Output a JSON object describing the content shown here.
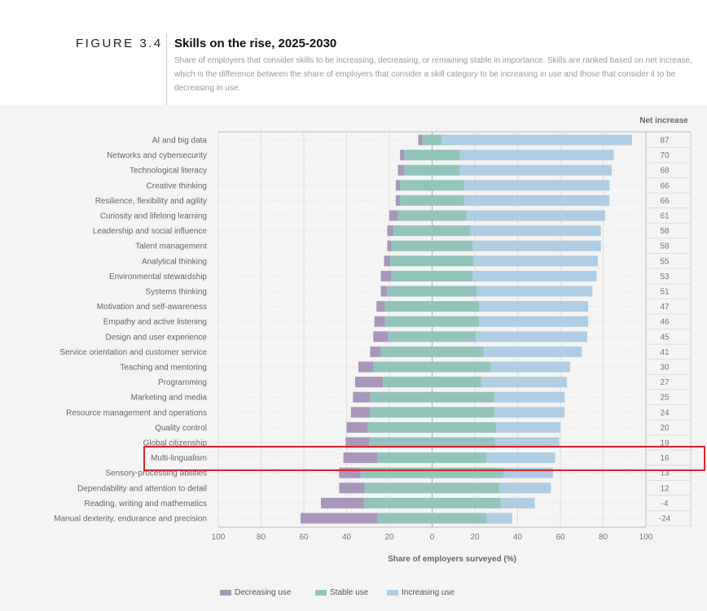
{
  "figure_label": "FIGURE 3.4",
  "net_header": "Net increase",
  "colors": {
    "decreasing": "#a897bb",
    "stable": "#93c4bc",
    "increasing": "#b0cde3",
    "highlight": "#e0242a"
  },
  "chart_data": {
    "type": "bar",
    "orientation": "horizontal-diverging-stacked",
    "title": "Skills on the rise, 2025-2030",
    "subtitle": "Share of employers that consider skills to be increasing, decreasing, or remaining stable in importance. Skills are ranked based on net increase, which is the difference between the share of employers that consider a skill category to be increasing in use and those that consider it to be decreasing in use.",
    "xlabel": "Share of employers surveyed (%)",
    "xlim": [
      -100,
      100
    ],
    "xticks": [
      "100",
      "80",
      "60",
      "40",
      "20",
      "0",
      "20",
      "40",
      "60",
      "80",
      "100"
    ],
    "legend": [
      "Decreasing use",
      "Stable use",
      "Increasing use"
    ],
    "legend_position": "bottom",
    "highlighted_category": "Multi-lingualism",
    "categories": [
      "AI and big data",
      "Networks and cybersecurity",
      "Technological literacy",
      "Creative thinking",
      "Resilience, flexibility and agility",
      "Curiosity and lifelong learning",
      "Leadership and social influence",
      "Talent management",
      "Analytical thinking",
      "Environmental stewardship",
      "Systems thinking",
      "Motivation and self-awareness",
      "Empathy and active listening",
      "Design and user experience",
      "Service orientation and customer service",
      "Teaching and mentoring",
      "Programming",
      "Marketing and media",
      "Resource management and operations",
      "Quality control",
      "Global citizenship",
      "Multi-lingualism",
      "Sensory-processing abilities",
      "Dependability and attention to detail",
      "Reading, writing and mathematics",
      "Manual dexterity, endurance and precision"
    ],
    "series": [
      {
        "name": "Decreasing use",
        "values": [
          2,
          2,
          3,
          2,
          2,
          4,
          3,
          2,
          3,
          5,
          3,
          4,
          5,
          7,
          5,
          7,
          13,
          8,
          9,
          10,
          11,
          16,
          10,
          12,
          20,
          36
        ]
      },
      {
        "name": "Stable use",
        "values": [
          9,
          26,
          26,
          30,
          30,
          32,
          36,
          38,
          39,
          38,
          42,
          44,
          44,
          41,
          48,
          55,
          46,
          58,
          58,
          60,
          59,
          51,
          67,
          63,
          64,
          51
        ]
      },
      {
        "name": "Increasing use",
        "values": [
          89,
          72,
          71,
          68,
          68,
          65,
          61,
          60,
          58,
          58,
          54,
          51,
          51,
          52,
          46,
          37,
          40,
          33,
          33,
          30,
          30,
          32,
          23,
          24,
          16,
          12
        ]
      }
    ],
    "net_increase": [
      "87",
      "70",
      "68",
      "66",
      "66",
      "61",
      "58",
      "58",
      "55",
      "53",
      "51",
      "47",
      "46",
      "45",
      "41",
      "30",
      "27",
      "25",
      "24",
      "20",
      "19",
      "16",
      "13",
      "12",
      "-4",
      "-24"
    ]
  }
}
